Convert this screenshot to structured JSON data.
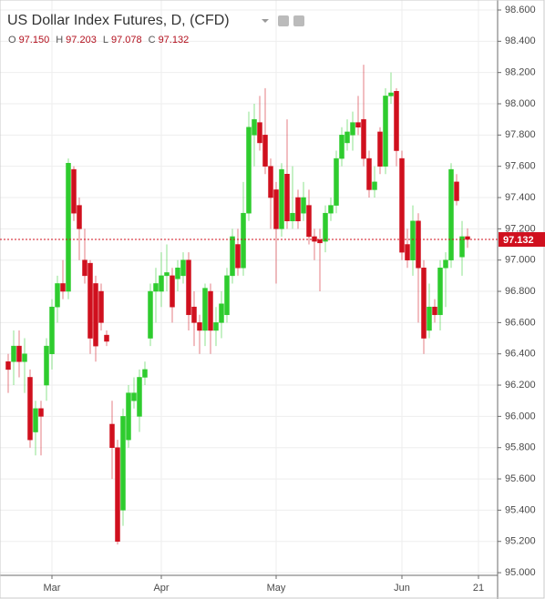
{
  "chart_data": {
    "type": "candlestick",
    "title": "US Dollar Index Futures, D, (CFD)",
    "ohlc_legend": [
      {
        "key": "O",
        "text": "97.150"
      },
      {
        "key": "H",
        "text": "97.203"
      },
      {
        "key": "L",
        "text": "97.078"
      },
      {
        "key": "C",
        "text": "97.132"
      }
    ],
    "last_price": {
      "value": 97.132,
      "label": "97.132"
    },
    "up_color": "#2ecc2e",
    "down_color": "#d0101e",
    "grid": true,
    "categories": [
      null,
      null,
      null,
      null,
      null,
      null,
      null,
      null,
      "Mar",
      null,
      null,
      null,
      null,
      null,
      null,
      null,
      null,
      null,
      null,
      null,
      null,
      null,
      null,
      null,
      null,
      null,
      null,
      null,
      "Apr",
      null,
      null,
      null,
      null,
      null,
      null,
      null,
      null,
      null,
      null,
      null,
      null,
      null,
      null,
      null,
      null,
      null,
      null,
      null,
      null,
      "May",
      null,
      null,
      null,
      null,
      null,
      null,
      null,
      null,
      null,
      null,
      null,
      null,
      null,
      null,
      null,
      null,
      null,
      null,
      null,
      null,
      null,
      null,
      "Jun",
      null,
      null,
      null,
      null,
      null,
      null,
      null,
      null,
      null,
      null,
      null,
      null,
      null,
      "21"
    ],
    "open": [
      96.35,
      96.35,
      96.45,
      96.35,
      96.25,
      95.9,
      96.05,
      96.2,
      96.4,
      96.7,
      96.85,
      96.8,
      97.58,
      97.35,
      97.0,
      96.98,
      96.85,
      96.8,
      96.52,
      95.95,
      95.8,
      95.4,
      95.85,
      96.1,
      96.0,
      96.25,
      96.5,
      96.8,
      96.8,
      96.9,
      96.9,
      96.88,
      96.9,
      97.0,
      96.7,
      96.6,
      96.55,
      96.8,
      96.55,
      96.6,
      96.65,
      96.9,
      97.1,
      96.95,
      97.3,
      97.8,
      97.88,
      97.8,
      97.6,
      97.45,
      97.2,
      97.55,
      97.25,
      97.4,
      97.3,
      97.35,
      97.15,
      97.13,
      97.12,
      97.3,
      97.35,
      97.65,
      97.75,
      97.8,
      97.88,
      97.9,
      97.65,
      97.45,
      97.82,
      97.6,
      98.05,
      98.08,
      97.65,
      97.1,
      97.0,
      97.25,
      96.95,
      96.55,
      96.7,
      96.65,
      96.95,
      97.0,
      97.5,
      97.02,
      97.15,
      null,
      null
    ],
    "high": [
      96.4,
      96.55,
      96.55,
      96.5,
      96.3,
      96.1,
      96.1,
      96.5,
      96.75,
      96.9,
      97.0,
      97.65,
      97.6,
      97.4,
      97.2,
      97.0,
      96.9,
      96.85,
      96.55,
      96.1,
      95.85,
      96.05,
      96.2,
      96.25,
      96.3,
      96.35,
      96.85,
      96.95,
      97.05,
      97.1,
      96.95,
      97.0,
      97.05,
      97.05,
      96.8,
      96.65,
      96.85,
      96.85,
      96.7,
      96.8,
      96.95,
      97.2,
      97.2,
      97.5,
      97.95,
      98.0,
      98.05,
      98.1,
      97.65,
      97.5,
      97.62,
      97.9,
      97.6,
      97.45,
      97.5,
      97.45,
      97.2,
      97.2,
      97.35,
      97.4,
      97.7,
      97.85,
      97.9,
      97.95,
      98.05,
      98.25,
      97.7,
      97.6,
      97.85,
      98.1,
      98.2,
      98.1,
      97.7,
      97.2,
      97.35,
      97.3,
      97.0,
      96.85,
      96.75,
      97.0,
      97.05,
      97.62,
      97.55,
      97.25,
      97.203,
      null,
      null
    ],
    "low": [
      96.15,
      96.2,
      96.25,
      96.15,
      95.8,
      95.75,
      95.75,
      96.1,
      96.3,
      96.6,
      96.75,
      96.75,
      97.25,
      97.0,
      96.85,
      96.4,
      96.35,
      96.55,
      96.45,
      95.6,
      95.18,
      95.3,
      95.8,
      96.05,
      95.9,
      96.2,
      96.45,
      96.6,
      96.7,
      96.8,
      96.6,
      96.8,
      96.85,
      96.55,
      96.45,
      96.4,
      96.45,
      96.4,
      96.45,
      96.5,
      96.6,
      96.85,
      96.9,
      96.9,
      97.25,
      97.6,
      97.7,
      97.55,
      97.2,
      96.85,
      97.15,
      97.2,
      97.2,
      97.2,
      97.25,
      97.1,
      97.0,
      96.8,
      97.05,
      97.25,
      97.3,
      97.6,
      97.7,
      97.7,
      97.8,
      97.6,
      97.4,
      97.4,
      97.55,
      97.55,
      98.0,
      97.6,
      97.0,
      96.95,
      96.9,
      96.6,
      96.4,
      96.5,
      96.6,
      96.55,
      96.7,
      96.95,
      97.35,
      96.9,
      97.078,
      null,
      null
    ],
    "close": [
      96.3,
      96.45,
      96.35,
      96.4,
      95.85,
      96.05,
      96.0,
      96.45,
      96.7,
      96.85,
      96.8,
      97.62,
      97.3,
      97.2,
      96.9,
      96.5,
      96.45,
      96.6,
      96.48,
      95.8,
      95.2,
      96.0,
      96.15,
      96.15,
      96.25,
      96.3,
      96.8,
      96.85,
      96.9,
      96.92,
      96.7,
      96.95,
      97.0,
      96.65,
      96.6,
      96.55,
      96.82,
      96.55,
      96.6,
      96.72,
      96.9,
      97.15,
      96.95,
      97.3,
      97.85,
      97.9,
      97.75,
      97.6,
      97.4,
      97.2,
      97.58,
      97.25,
      97.3,
      97.25,
      97.4,
      97.15,
      97.12,
      97.11,
      97.3,
      97.35,
      97.65,
      97.8,
      97.82,
      97.88,
      97.85,
      97.65,
      97.45,
      97.5,
      97.6,
      98.05,
      98.07,
      97.7,
      97.05,
      97.0,
      97.25,
      96.95,
      96.5,
      96.7,
      96.65,
      96.95,
      97.0,
      97.58,
      97.38,
      97.15,
      97.132,
      null,
      null
    ],
    "ylim": [
      94.983,
      98.664
    ],
    "yticks": [
      {
        "value": 95.0,
        "label": "95.000"
      },
      {
        "value": 95.2,
        "label": "95.200"
      },
      {
        "value": 95.4,
        "label": "95.400"
      },
      {
        "value": 95.6,
        "label": "95.600"
      },
      {
        "value": 95.8,
        "label": "95.800"
      },
      {
        "value": 96.0,
        "label": "96.000"
      },
      {
        "value": 96.2,
        "label": "96.200"
      },
      {
        "value": 96.4,
        "label": "96.400"
      },
      {
        "value": 96.6,
        "label": "96.600"
      },
      {
        "value": 96.8,
        "label": "96.800"
      },
      {
        "value": 97.0,
        "label": "97.000"
      },
      {
        "value": 97.2,
        "label": "97.200"
      },
      {
        "value": 97.4,
        "label": "97.400"
      },
      {
        "value": 97.6,
        "label": "97.600"
      },
      {
        "value": 97.8,
        "label": "97.800"
      },
      {
        "value": 98.0,
        "label": "98.000"
      },
      {
        "value": 98.2,
        "label": "98.200"
      },
      {
        "value": 98.4,
        "label": "98.400"
      },
      {
        "value": 98.6,
        "label": "98.600"
      }
    ]
  }
}
